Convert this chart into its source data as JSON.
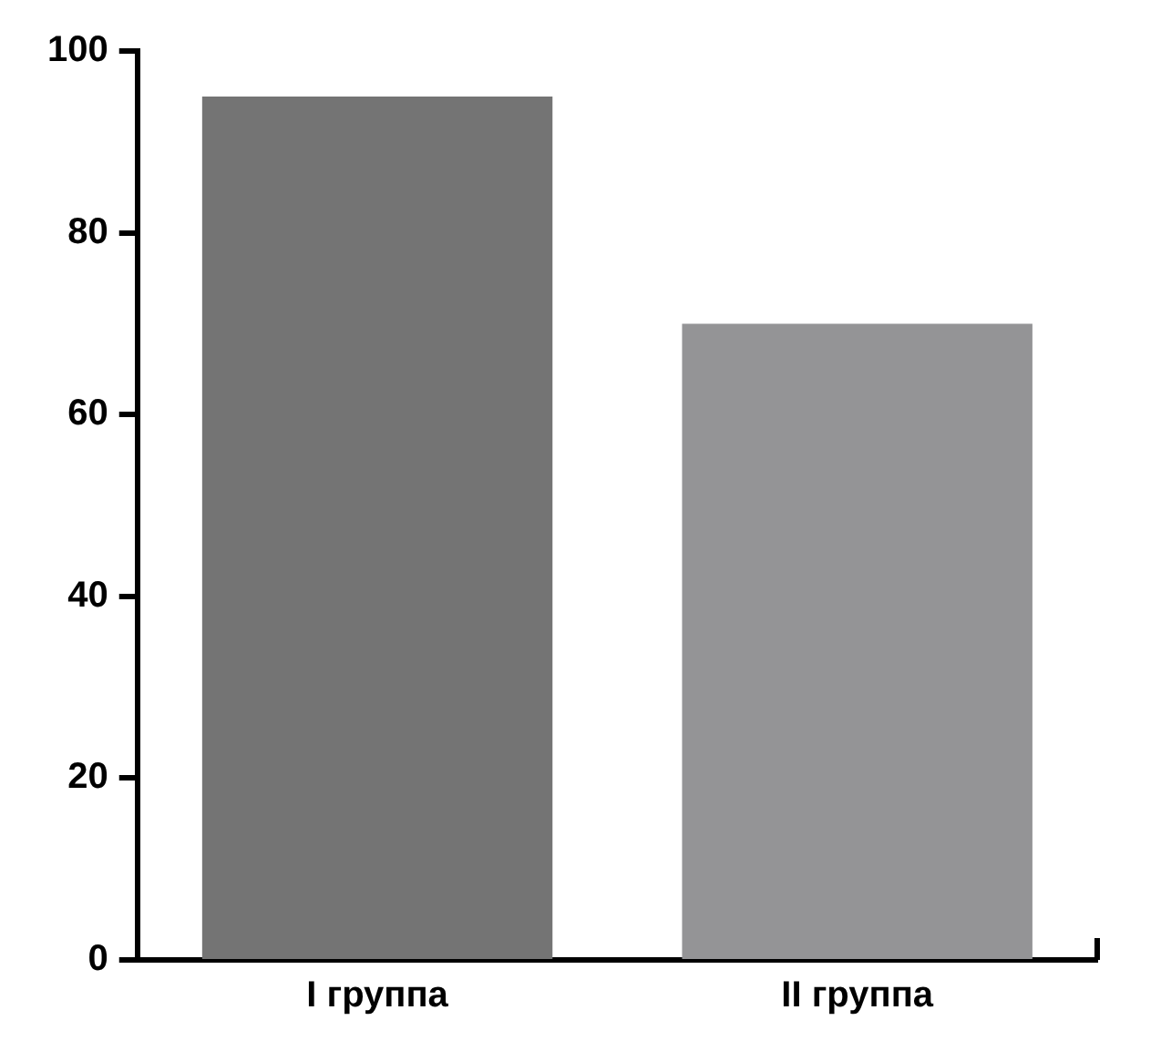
{
  "chart_data": {
    "type": "bar",
    "categories": [
      "I группа",
      "II группа"
    ],
    "values": [
      95,
      70
    ],
    "colors": [
      "#747474",
      "#949496"
    ],
    "ylim": [
      0,
      100
    ],
    "yticks": [
      0,
      20,
      40,
      60,
      80,
      100
    ],
    "grid": false,
    "legend": false
  }
}
